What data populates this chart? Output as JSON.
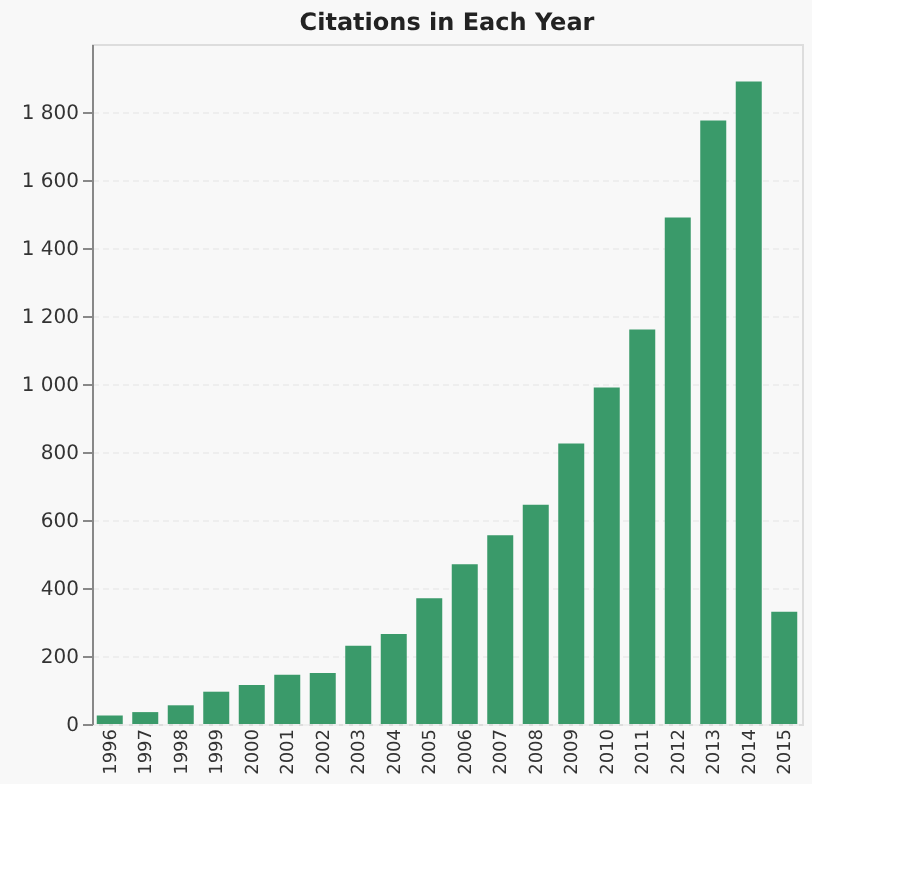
{
  "chart_data": {
    "type": "bar",
    "title": "Citations in Each Year",
    "categories": [
      "1996",
      "1997",
      "1998",
      "1999",
      "2000",
      "2001",
      "2002",
      "2003",
      "2004",
      "2005",
      "2006",
      "2007",
      "2008",
      "2009",
      "2010",
      "2011",
      "2012",
      "2013",
      "2014",
      "2015"
    ],
    "values": [
      25,
      35,
      55,
      95,
      115,
      145,
      150,
      230,
      265,
      370,
      470,
      555,
      645,
      825,
      990,
      1160,
      1490,
      1775,
      1890,
      330
    ],
    "color": "#3a9a6a",
    "ylim": [
      0,
      2000
    ],
    "yticks": [
      0,
      200,
      400,
      600,
      800,
      {
        "value": 1000,
        "label": "1 000"
      },
      {
        "value": 1200,
        "label": "1 200"
      },
      {
        "value": 1400,
        "label": "1 400"
      },
      {
        "value": 1600,
        "label": "1 600"
      },
      {
        "value": 1800,
        "label": "1 800"
      }
    ],
    "grid": "y"
  }
}
